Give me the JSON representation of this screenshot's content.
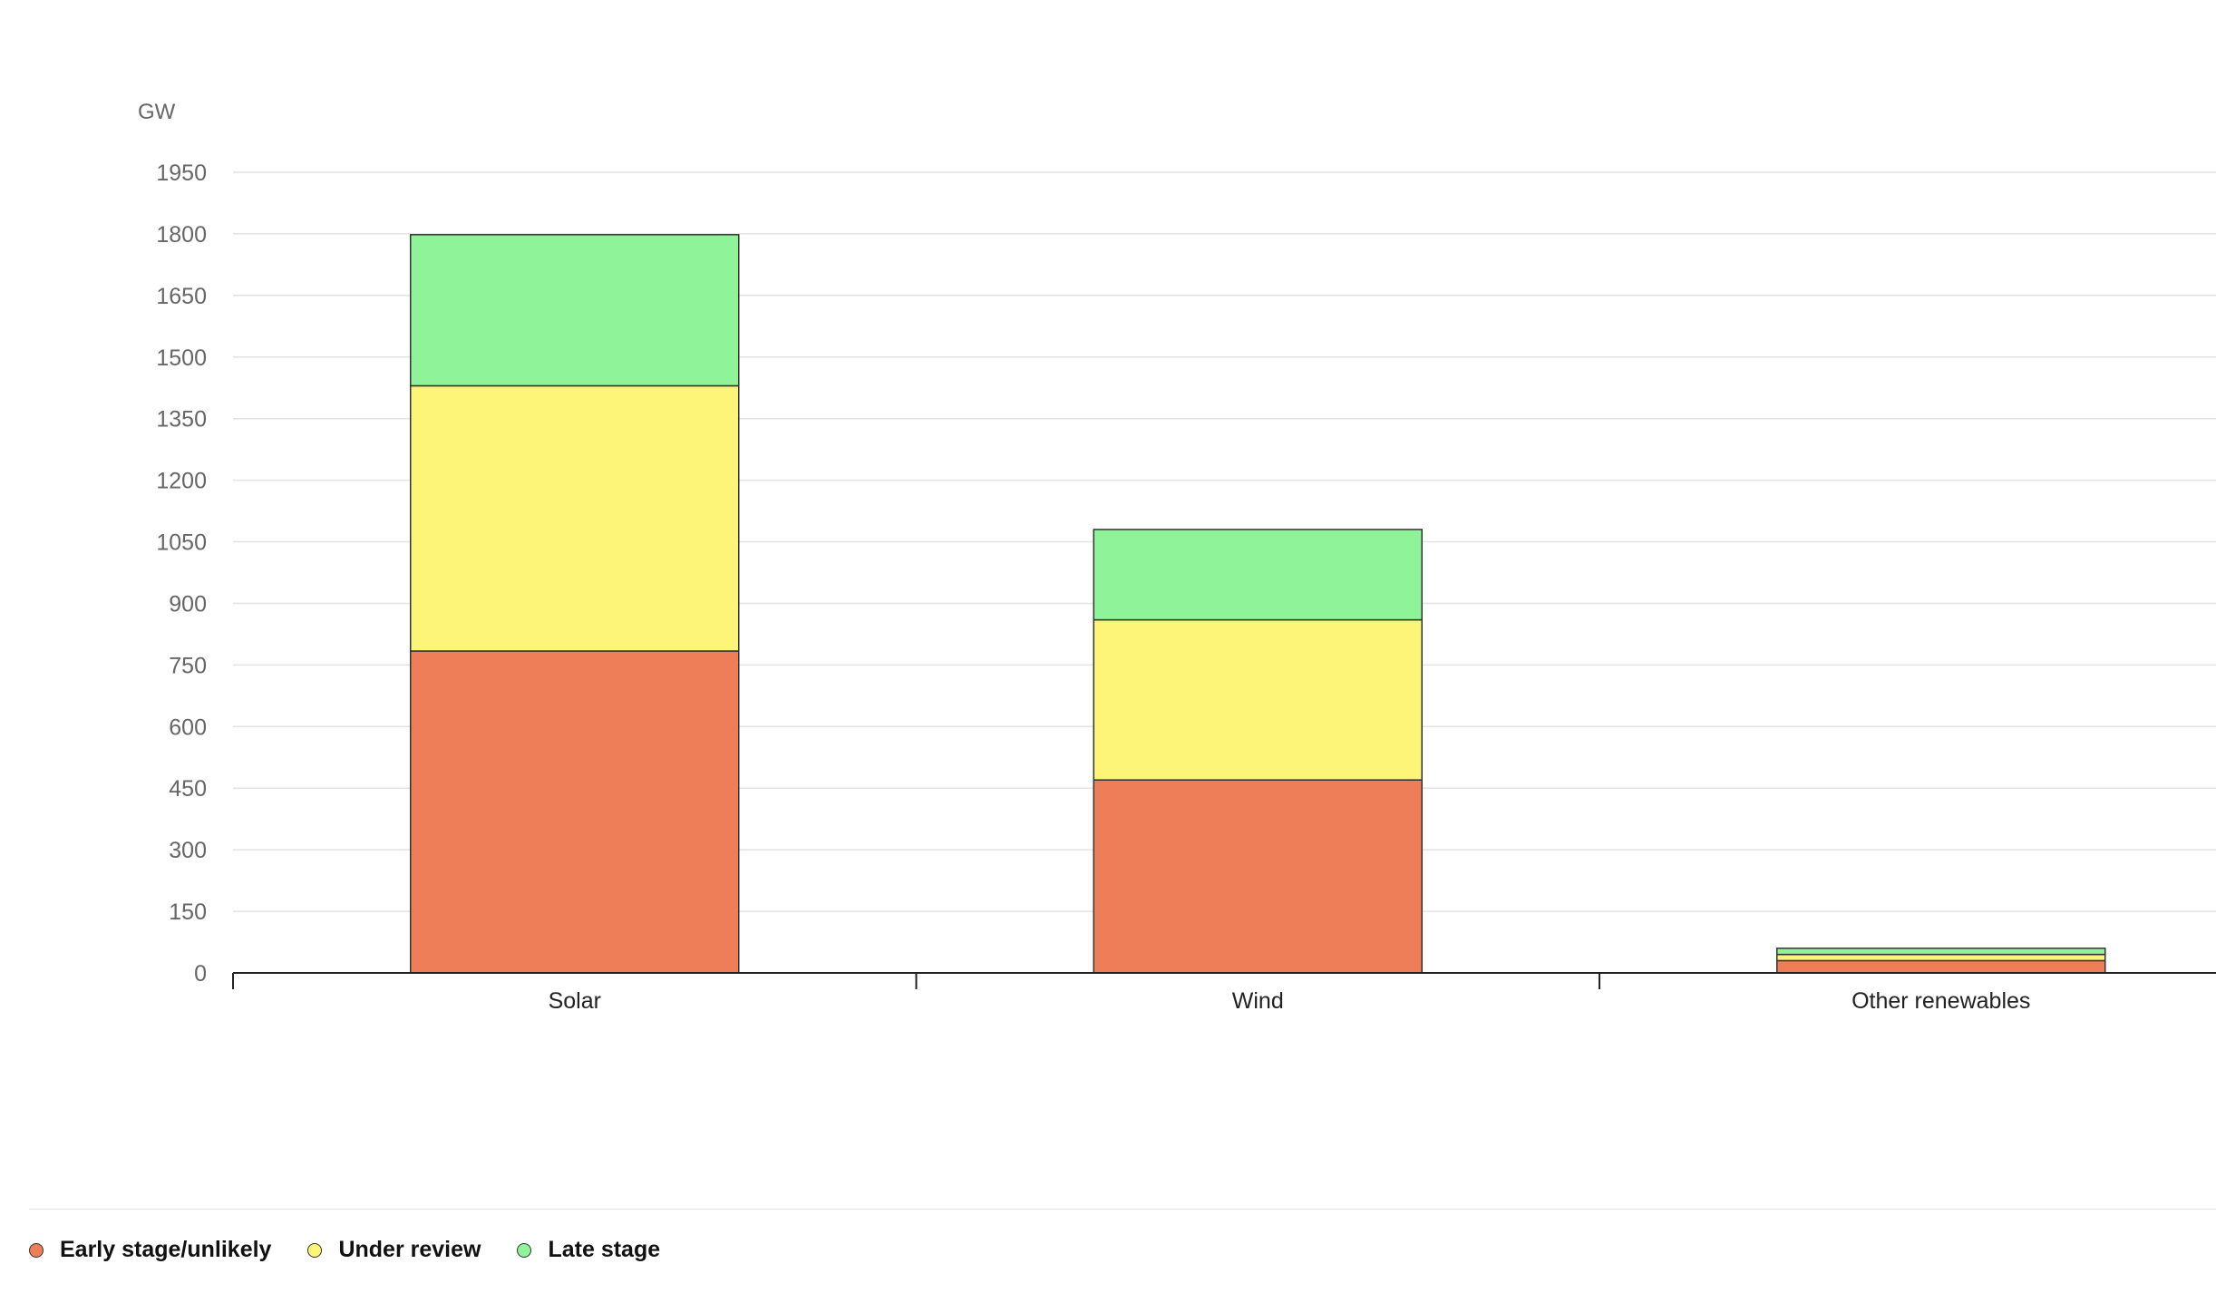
{
  "chart_data": {
    "type": "bar",
    "stacked": true,
    "categories": [
      "Solar",
      "Wind",
      "Other renewables"
    ],
    "series": [
      {
        "name": "Early stage/unlikely",
        "color": "#ee7e58",
        "values": [
          784,
          470,
          30
        ]
      },
      {
        "name": "Under review",
        "color": "#fdf577",
        "values": [
          646,
          390,
          15
        ]
      },
      {
        "name": "Late stage",
        "color": "#8ff39a",
        "values": [
          368,
          220,
          15
        ]
      }
    ],
    "ylabel": "GW",
    "yticks": [
      0,
      150,
      300,
      450,
      600,
      750,
      900,
      1050,
      1200,
      1350,
      1500,
      1650,
      1800,
      1950
    ],
    "ylim": [
      0,
      1950
    ],
    "grid": true,
    "legend_position": "bottom-left"
  }
}
